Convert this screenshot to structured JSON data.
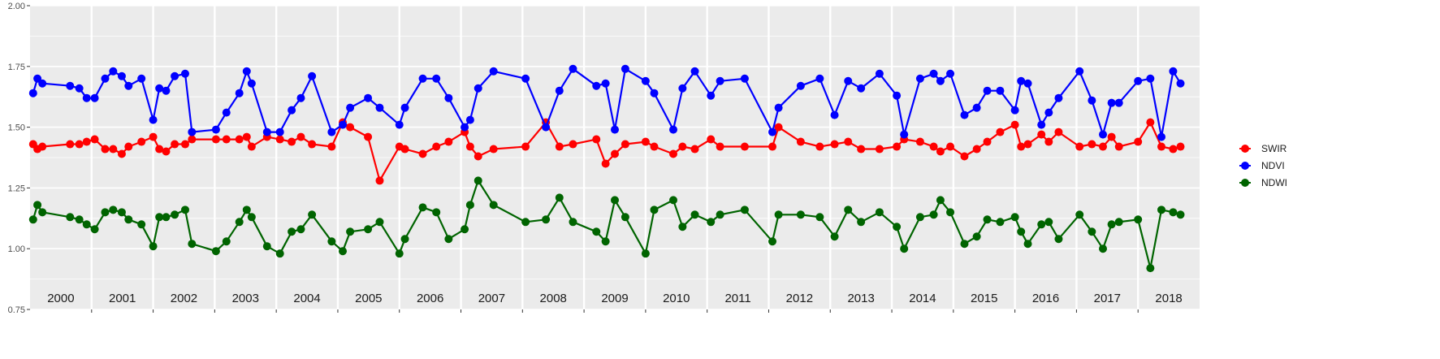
{
  "chart_data": {
    "type": "line",
    "title": "",
    "xlabel": "",
    "ylabel": "",
    "ylim": [
      0.75,
      2.0
    ],
    "xlim": [
      2000.0,
      2018.9
    ],
    "y_ticks": [
      0.75,
      1.0,
      1.25,
      1.5,
      1.75,
      2.0
    ],
    "y_tick_labels": [
      "0.75",
      "1.00",
      "1.25",
      "1.50",
      "1.75",
      "2.00"
    ],
    "x_scale": "time (years)",
    "year_labels": [
      "2000",
      "2001",
      "2002",
      "2003",
      "2004",
      "2005",
      "2006",
      "2007",
      "2008",
      "2009",
      "2010",
      "2011",
      "2012",
      "2013",
      "2014",
      "2015",
      "2016",
      "2017",
      "2018"
    ],
    "grid": true,
    "background": "#ebebeb",
    "legend_position": "right",
    "series": [
      {
        "name": "SWIR",
        "color": "#ff0000",
        "x": [
          2000.05,
          2000.12,
          2000.2,
          2000.65,
          2000.8,
          2000.92,
          2001.05,
          2001.22,
          2001.35,
          2001.49,
          2001.6,
          2001.81,
          2002.0,
          2002.1,
          2002.21,
          2002.35,
          2002.52,
          2002.63,
          2003.02,
          2003.19,
          2003.4,
          2003.52,
          2003.6,
          2003.85,
          2004.06,
          2004.25,
          2004.4,
          2004.58,
          2004.9,
          2005.08,
          2005.2,
          2005.49,
          2005.68,
          2006.0,
          2006.09,
          2006.38,
          2006.6,
          2006.8,
          2007.06,
          2007.15,
          2007.28,
          2007.53,
          2008.05,
          2008.38,
          2008.6,
          2008.82,
          2009.2,
          2009.35,
          2009.5,
          2009.67,
          2010.0,
          2010.14,
          2010.45,
          2010.6,
          2010.8,
          2011.06,
          2011.21,
          2011.61,
          2012.06,
          2012.16,
          2012.52,
          2012.83,
          2013.07,
          2013.29,
          2013.5,
          2013.8,
          2014.08,
          2014.2,
          2014.46,
          2014.68,
          2014.79,
          2014.95,
          2015.18,
          2015.38,
          2015.55,
          2015.76,
          2016.0,
          2016.1,
          2016.21,
          2016.43,
          2016.55,
          2016.71,
          2017.05,
          2017.25,
          2017.43,
          2017.57,
          2017.69,
          2018.0,
          2018.2,
          2018.38,
          2018.57,
          2018.69
        ],
        "values": [
          1.43,
          1.41,
          1.42,
          1.43,
          1.43,
          1.44,
          1.45,
          1.41,
          1.41,
          1.39,
          1.42,
          1.44,
          1.46,
          1.41,
          1.4,
          1.43,
          1.43,
          1.45,
          1.45,
          1.45,
          1.45,
          1.46,
          1.42,
          1.46,
          1.45,
          1.44,
          1.46,
          1.43,
          1.42,
          1.52,
          1.5,
          1.46,
          1.28,
          1.42,
          1.41,
          1.39,
          1.42,
          1.44,
          1.48,
          1.42,
          1.38,
          1.41,
          1.42,
          1.52,
          1.42,
          1.43,
          1.45,
          1.35,
          1.39,
          1.43,
          1.44,
          1.42,
          1.39,
          1.42,
          1.41,
          1.45,
          1.42,
          1.42,
          1.42,
          1.5,
          1.44,
          1.42,
          1.43,
          1.44,
          1.41,
          1.41,
          1.42,
          1.45,
          1.44,
          1.42,
          1.4,
          1.42,
          1.38,
          1.41,
          1.44,
          1.48,
          1.51,
          1.42,
          1.43,
          1.47,
          1.44,
          1.48,
          1.42,
          1.43,
          1.42,
          1.46,
          1.42,
          1.44,
          1.52,
          1.42,
          1.41,
          1.42
        ]
      },
      {
        "name": "NDVI",
        "color": "#0000ff",
        "x": [
          2000.05,
          2000.12,
          2000.2,
          2000.65,
          2000.8,
          2000.92,
          2001.05,
          2001.22,
          2001.35,
          2001.49,
          2001.6,
          2001.81,
          2002.0,
          2002.1,
          2002.21,
          2002.35,
          2002.52,
          2002.63,
          2003.02,
          2003.19,
          2003.4,
          2003.52,
          2003.6,
          2003.85,
          2004.06,
          2004.25,
          2004.4,
          2004.58,
          2004.9,
          2005.08,
          2005.2,
          2005.49,
          2005.68,
          2006.0,
          2006.09,
          2006.38,
          2006.6,
          2006.8,
          2007.06,
          2007.15,
          2007.28,
          2007.53,
          2008.05,
          2008.38,
          2008.6,
          2008.82,
          2009.2,
          2009.35,
          2009.5,
          2009.67,
          2010.0,
          2010.14,
          2010.45,
          2010.6,
          2010.8,
          2011.06,
          2011.21,
          2011.61,
          2012.06,
          2012.16,
          2012.52,
          2012.83,
          2013.07,
          2013.29,
          2013.5,
          2013.8,
          2014.08,
          2014.2,
          2014.46,
          2014.68,
          2014.79,
          2014.95,
          2015.18,
          2015.38,
          2015.55,
          2015.76,
          2016.0,
          2016.1,
          2016.21,
          2016.43,
          2016.55,
          2016.71,
          2017.05,
          2017.25,
          2017.43,
          2017.57,
          2017.69,
          2018.0,
          2018.2,
          2018.38,
          2018.57,
          2018.69
        ],
        "values": [
          1.64,
          1.7,
          1.68,
          1.67,
          1.66,
          1.62,
          1.62,
          1.7,
          1.73,
          1.71,
          1.67,
          1.7,
          1.53,
          1.66,
          1.65,
          1.71,
          1.72,
          1.48,
          1.49,
          1.56,
          1.64,
          1.73,
          1.68,
          1.48,
          1.48,
          1.57,
          1.62,
          1.71,
          1.48,
          1.51,
          1.58,
          1.62,
          1.58,
          1.51,
          1.58,
          1.7,
          1.7,
          1.62,
          1.5,
          1.53,
          1.66,
          1.73,
          1.7,
          1.5,
          1.65,
          1.74,
          1.67,
          1.68,
          1.49,
          1.74,
          1.69,
          1.64,
          1.49,
          1.66,
          1.73,
          1.63,
          1.69,
          1.7,
          1.48,
          1.58,
          1.67,
          1.7,
          1.55,
          1.69,
          1.66,
          1.72,
          1.63,
          1.47,
          1.7,
          1.72,
          1.69,
          1.72,
          1.55,
          1.58,
          1.65,
          1.65,
          1.57,
          1.69,
          1.68,
          1.51,
          1.56,
          1.62,
          1.73,
          1.61,
          1.47,
          1.6,
          1.6,
          1.69,
          1.7,
          1.46,
          1.73,
          1.68
        ]
      },
      {
        "name": "NDWI",
        "color": "#006400",
        "x": [
          2000.05,
          2000.12,
          2000.2,
          2000.65,
          2000.8,
          2000.92,
          2001.05,
          2001.22,
          2001.35,
          2001.49,
          2001.6,
          2001.81,
          2002.0,
          2002.1,
          2002.21,
          2002.35,
          2002.52,
          2002.63,
          2003.02,
          2003.19,
          2003.4,
          2003.52,
          2003.6,
          2003.85,
          2004.06,
          2004.25,
          2004.4,
          2004.58,
          2004.9,
          2005.08,
          2005.2,
          2005.49,
          2005.68,
          2006.0,
          2006.09,
          2006.38,
          2006.6,
          2006.8,
          2007.06,
          2007.15,
          2007.28,
          2007.53,
          2008.05,
          2008.38,
          2008.6,
          2008.82,
          2009.2,
          2009.35,
          2009.5,
          2009.67,
          2010.0,
          2010.14,
          2010.45,
          2010.6,
          2010.8,
          2011.06,
          2011.21,
          2011.61,
          2012.06,
          2012.16,
          2012.52,
          2012.83,
          2013.07,
          2013.29,
          2013.5,
          2013.8,
          2014.08,
          2014.2,
          2014.46,
          2014.68,
          2014.79,
          2014.95,
          2015.18,
          2015.38,
          2015.55,
          2015.76,
          2016.0,
          2016.1,
          2016.21,
          2016.43,
          2016.55,
          2016.71,
          2017.05,
          2017.25,
          2017.43,
          2017.57,
          2017.69,
          2018.0,
          2018.2,
          2018.38,
          2018.57,
          2018.69
        ],
        "values": [
          1.12,
          1.18,
          1.15,
          1.13,
          1.12,
          1.1,
          1.08,
          1.15,
          1.16,
          1.15,
          1.12,
          1.1,
          1.01,
          1.13,
          1.13,
          1.14,
          1.16,
          1.02,
          0.99,
          1.03,
          1.11,
          1.16,
          1.13,
          1.01,
          0.98,
          1.07,
          1.08,
          1.14,
          1.03,
          0.99,
          1.07,
          1.08,
          1.11,
          0.98,
          1.04,
          1.17,
          1.15,
          1.04,
          1.08,
          1.18,
          1.28,
          1.18,
          1.11,
          1.12,
          1.21,
          1.11,
          1.07,
          1.03,
          1.2,
          1.13,
          0.98,
          1.16,
          1.2,
          1.09,
          1.14,
          1.11,
          1.14,
          1.16,
          1.03,
          1.14,
          1.14,
          1.13,
          1.05,
          1.16,
          1.11,
          1.15,
          1.09,
          1.0,
          1.13,
          1.14,
          1.2,
          1.15,
          1.02,
          1.05,
          1.12,
          1.11,
          1.13,
          1.07,
          1.02,
          1.1,
          1.11,
          1.04,
          1.14,
          1.07,
          1.0,
          1.1,
          1.11,
          1.12,
          0.92,
          1.16,
          1.15,
          1.14
        ]
      }
    ]
  },
  "legend": {
    "items": [
      {
        "label": "SWIR",
        "color": "#ff0000"
      },
      {
        "label": "NDVI",
        "color": "#0000ff"
      },
      {
        "label": "NDWI",
        "color": "#006400"
      }
    ]
  }
}
